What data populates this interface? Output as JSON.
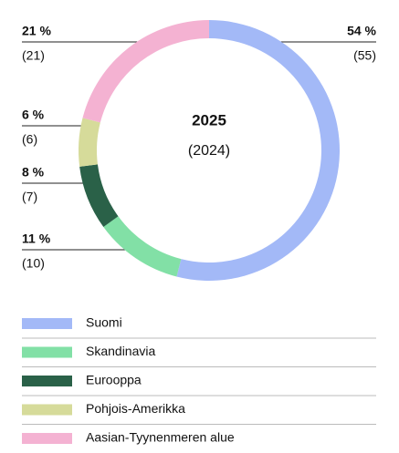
{
  "chart_data": {
    "type": "donut",
    "categories": [
      "Suomi",
      "Skandinavia",
      "Eurooppa",
      "Pohjois-Amerikka",
      "Aasian-Tyynenmeren alue"
    ],
    "colors": [
      "#a3b9f7",
      "#82e0a6",
      "#2a6148",
      "#d6db9a",
      "#f4b2d2"
    ],
    "series": [
      {
        "name": "2025",
        "values": [
          54,
          11,
          8,
          6,
          21
        ],
        "value_labels": [
          "54 %",
          "11 %",
          "8 %",
          "6 %",
          "21 %"
        ]
      },
      {
        "name": "(2024)",
        "values": [
          55,
          10,
          7,
          6,
          21
        ],
        "value_labels": [
          "(55)",
          "(10)",
          "(7)",
          "(6)",
          "(21)"
        ]
      }
    ]
  }
}
